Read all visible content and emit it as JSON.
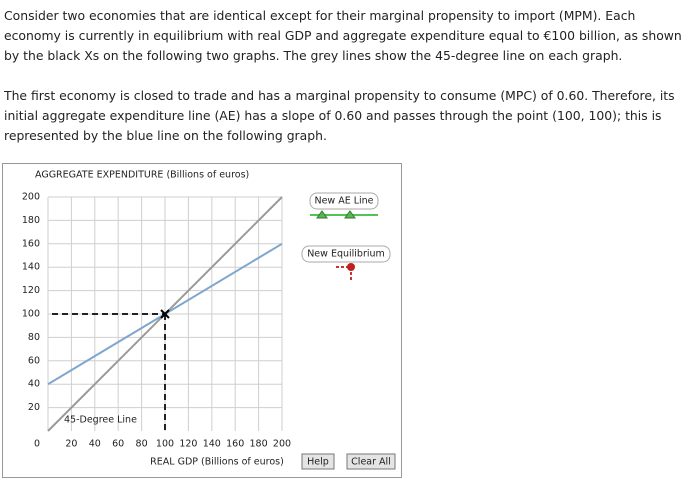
{
  "paragraphs": [
    "Consider two economies that are identical except for their marginal propensity to import (MPM). Each economy is currently in equilibrium with real GDP and aggregate expenditure equal to €100 billion, as shown by the black Xs on the following two graphs. The grey lines show the 45-degree line on each graph.",
    "The first economy is closed to trade and has a marginal propensity to consume (MPC) of 0.60. Therefore, its initial aggregate expenditure line (AE) has a slope of 0.60 and passes through the point (100, 100); this is represented by the blue line on the following graph."
  ],
  "chart_data": {
    "type": "line",
    "title": "AGGREGATE EXPENDITURE (Billions of euros)",
    "x_label": "REAL GDP (Billions of euros)",
    "xlim": [
      0,
      200
    ],
    "ylim": [
      0,
      200
    ],
    "xticks": [
      0,
      20,
      40,
      60,
      80,
      100,
      120,
      140,
      160,
      180,
      200
    ],
    "yticks": [
      20,
      40,
      60,
      80,
      100,
      120,
      140,
      160,
      180,
      200
    ],
    "grid": true,
    "series": [
      {
        "name": "45-Degree Line",
        "color": "#9a9a9a",
        "x": [
          0,
          200
        ],
        "values": [
          0,
          200
        ]
      },
      {
        "color": "#7fa6cb",
        "x": [
          0,
          200
        ],
        "values": [
          40,
          160
        ]
      }
    ],
    "equilibrium": {
      "x": 100,
      "y": 100
    },
    "tools": [
      "New AE Line",
      "New Equilibrium"
    ]
  },
  "buttons": [
    "Help",
    "Clear All"
  ]
}
